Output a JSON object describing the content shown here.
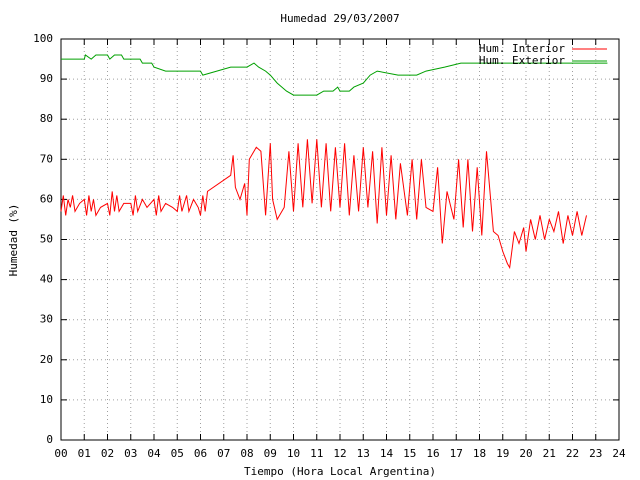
{
  "chart_data": {
    "type": "line",
    "title": "Humedad 29/03/2007",
    "x_label": "Tiempo (Hora Local Argentina)",
    "y_label": "Humedad (%)",
    "xlim": [
      0,
      24
    ],
    "ylim": [
      0,
      100
    ],
    "xticks": [
      {
        "value": 0,
        "label": "00"
      },
      {
        "value": 1,
        "label": "01"
      },
      {
        "value": 2,
        "label": "02"
      },
      {
        "value": 3,
        "label": "03"
      },
      {
        "value": 4,
        "label": "04"
      },
      {
        "value": 5,
        "label": "05"
      },
      {
        "value": 6,
        "label": "06"
      },
      {
        "value": 7,
        "label": "07"
      },
      {
        "value": 8,
        "label": "08"
      },
      {
        "value": 9,
        "label": "09"
      },
      10,
      11,
      12,
      13,
      14,
      15,
      16,
      17,
      18,
      19,
      20,
      21,
      22,
      23,
      24
    ],
    "yticks": [
      0,
      10,
      20,
      30,
      40,
      50,
      60,
      70,
      80,
      90,
      100
    ],
    "grid": true,
    "legend": "top-right",
    "series": [
      {
        "name": "Hum. Interior",
        "color": "#ff0000",
        "x": [
          0,
          0.1,
          0.2,
          0.3,
          0.4,
          0.5,
          0.6,
          0.8,
          1.0,
          1.1,
          1.2,
          1.3,
          1.4,
          1.5,
          1.7,
          2.0,
          2.1,
          2.2,
          2.3,
          2.4,
          2.5,
          2.7,
          3.0,
          3.1,
          3.2,
          3.3,
          3.5,
          3.7,
          4.0,
          4.1,
          4.2,
          4.3,
          4.5,
          4.8,
          5.0,
          5.1,
          5.2,
          5.4,
          5.5,
          5.7,
          5.9,
          6.0,
          6.1,
          6.2,
          6.3,
          7.3,
          7.4,
          7.5,
          7.7,
          7.9,
          8.0,
          8.1,
          8.4,
          8.6,
          8.8,
          9.0,
          9.1,
          9.3,
          9.6,
          9.8,
          10.0,
          10.2,
          10.4,
          10.6,
          10.8,
          11.0,
          11.2,
          11.4,
          11.6,
          11.8,
          12.0,
          12.2,
          12.4,
          12.6,
          12.8,
          13.0,
          13.2,
          13.4,
          13.6,
          13.8,
          14.0,
          14.2,
          14.4,
          14.6,
          14.9,
          15.1,
          15.3,
          15.5,
          15.7,
          16.0,
          16.2,
          16.4,
          16.6,
          16.9,
          17.1,
          17.3,
          17.5,
          17.7,
          17.9,
          18.1,
          18.3,
          18.6,
          18.8,
          19.0,
          19.2,
          19.3,
          19.5,
          19.7,
          19.9,
          20.0,
          20.2,
          20.4,
          20.6,
          20.8,
          21.0,
          21.2,
          21.4,
          21.6,
          21.8,
          22.0,
          22.2,
          22.4,
          22.6
        ],
        "values": [
          57,
          61,
          56,
          60,
          58,
          61,
          57,
          59,
          60,
          56,
          61,
          57,
          60,
          56,
          58,
          59,
          56,
          62,
          57,
          61,
          57,
          59,
          59,
          56,
          61,
          57,
          60,
          58,
          60,
          56,
          61,
          57,
          59,
          58,
          57,
          61,
          57,
          61,
          57,
          60,
          58,
          56,
          61,
          57,
          62,
          66,
          71,
          63,
          60,
          64,
          56,
          70,
          73,
          72,
          56,
          74,
          60,
          55,
          58,
          72,
          57,
          74,
          58,
          75,
          59,
          75,
          58,
          74,
          57,
          73,
          58,
          74,
          56,
          71,
          57,
          73,
          58,
          72,
          54,
          73,
          56,
          71,
          55,
          69,
          56,
          70,
          55,
          70,
          58,
          57,
          68,
          49,
          62,
          55,
          70,
          53,
          70,
          52,
          68,
          51,
          72,
          52,
          51,
          47,
          44,
          43,
          52,
          49,
          53,
          47,
          55,
          50,
          56,
          50,
          55,
          52,
          57,
          49,
          56,
          51,
          57,
          51,
          56
        ]
      },
      {
        "name": "Hum. Exterior",
        "color": "#00a000",
        "x": [
          0,
          1.0,
          1.05,
          1.3,
          1.5,
          2.0,
          2.1,
          2.3,
          2.6,
          2.7,
          3.4,
          3.5,
          3.9,
          4.0,
          4.5,
          6.0,
          6.1,
          6.7,
          7.3,
          8.0,
          8.3,
          8.5,
          8.8,
          9.0,
          9.3,
          9.7,
          10.0,
          11.0,
          11.3,
          11.7,
          11.9,
          12.0,
          12.4,
          12.6,
          13.0,
          13.3,
          13.6,
          14.5,
          15.3,
          15.7,
          16.5,
          17.2,
          23.5
        ],
        "values": [
          95,
          95,
          96,
          95,
          96,
          96,
          95,
          96,
          96,
          95,
          95,
          94,
          94,
          93,
          92,
          92,
          91,
          92,
          93,
          93,
          94,
          93,
          92,
          91,
          89,
          87,
          86,
          86,
          87,
          87,
          88,
          87,
          87,
          88,
          89,
          91,
          92,
          91,
          91,
          92,
          93,
          94,
          94
        ]
      }
    ]
  }
}
